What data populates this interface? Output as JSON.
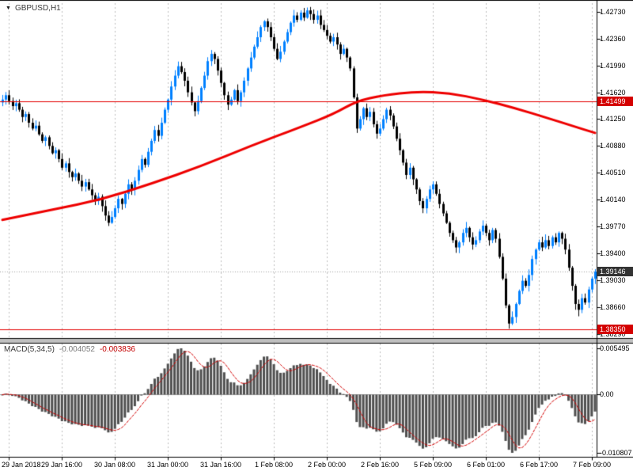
{
  "chart": {
    "symbol_label": "GBPUSD,H1",
    "dropdown_icon": "▼"
  },
  "colors": {
    "background": "#ffffff",
    "bull": "#0080ff",
    "bear": "#000000",
    "ma": "#ee0000",
    "hline": "#e40000",
    "grid": "#bdbdbd",
    "histogram": "#4f4f4f",
    "signal": "#d40000",
    "bid_line": "#9e9e9e",
    "splitter": "#bfbfbf",
    "tag_line_bg": "#d40000",
    "tag_bid_bg": "#333333",
    "tag_text": "#ffffff"
  },
  "lines": {
    "resistance": {
      "price": 1.41499,
      "label": "1.41499"
    },
    "bid": {
      "price": 1.39146,
      "label": "1.39146"
    },
    "support": {
      "price": 1.3835,
      "label": "1.38350"
    }
  },
  "price_axis": {
    "ticks": [
      "1.42730",
      "1.42360",
      "1.41990",
      "1.41620",
      "1.41250",
      "1.40880",
      "1.40510",
      "1.40140",
      "1.39770",
      "1.39400",
      "1.39030",
      "1.38660",
      "1.38290"
    ]
  },
  "time_axis": {
    "labels": [
      "29 Jan 2018",
      "29 Jan 16:00",
      "30 Jan 08:00",
      "31 Jan 00:00",
      "31 Jan 16:00",
      "1 Feb 08:00",
      "2 Feb 00:00",
      "2 Feb 16:00",
      "5 Feb 09:00",
      "6 Feb 01:00",
      "6 Feb 17:00",
      "7 Feb 09:00"
    ]
  },
  "macd": {
    "title": "MACD(5,34,5)",
    "value1": "-0.004052",
    "value2": "-0.003836",
    "axis": {
      "top": "0.005495",
      "zero": "0.00",
      "bottom": "-0.010807"
    }
  },
  "chart_data": {
    "type": "candlestick",
    "symbol": "GBPUSD",
    "timeframe": "H1",
    "title": "GBPUSD,H1",
    "price_range": [
      1.3823,
      1.4285
    ],
    "current_price": 1.39146,
    "horizontal_lines": {
      "resistance": 1.41499,
      "support": 1.3835,
      "bid": 1.39146
    },
    "y_axis_ticks": [
      "1.42730",
      "1.42360",
      "1.41990",
      "1.41620",
      "1.41250",
      "1.40880",
      "1.40510",
      "1.40140",
      "1.39770",
      "1.39400",
      "1.39030",
      "1.38660",
      "1.38290"
    ],
    "x_axis_labels": [
      "29 Jan 2018",
      "29 Jan 16:00",
      "30 Jan 08:00",
      "31 Jan 00:00",
      "31 Jan 16:00",
      "1 Feb 08:00",
      "2 Feb 00:00",
      "2 Feb 16:00",
      "5 Feb 09:00",
      "6 Feb 01:00",
      "6 Feb 17:00",
      "7 Feb 09:00"
    ],
    "gridline_start_index": 2,
    "gridline_step": 16,
    "closes": [
      1.4152,
      1.4158,
      1.415,
      1.4143,
      1.4147,
      1.4138,
      1.4128,
      1.4132,
      1.412,
      1.4112,
      1.4116,
      1.4104,
      1.4095,
      1.41,
      1.4088,
      1.4078,
      1.4082,
      1.407,
      1.4058,
      1.4064,
      1.4052,
      1.4045,
      1.405,
      1.404,
      1.4032,
      1.4038,
      1.4028,
      1.402,
      1.4012,
      1.4018,
      1.4005,
      1.3992,
      1.3982,
      1.399,
      1.4002,
      1.4015,
      1.4008,
      1.4022,
      1.4035,
      1.4028,
      1.404,
      1.4055,
      1.407,
      1.4062,
      1.408,
      1.4095,
      1.411,
      1.4102,
      1.412,
      1.4138,
      1.4152,
      1.417,
      1.4185,
      1.4198,
      1.419,
      1.4178,
      1.4162,
      1.4148,
      1.4136,
      1.415,
      1.4168,
      1.4185,
      1.4205,
      1.4215,
      1.4208,
      1.4192,
      1.4175,
      1.4158,
      1.4145,
      1.4152,
      1.4165,
      1.415,
      1.4162,
      1.4178,
      1.4195,
      1.421,
      1.4225,
      1.4238,
      1.4252,
      1.426,
      1.4252,
      1.4238,
      1.4222,
      1.4208,
      1.4218,
      1.4232,
      1.4245,
      1.4258,
      1.4268,
      1.4262,
      1.4272,
      1.4265,
      1.4275,
      1.427,
      1.4262,
      1.4268,
      1.4255,
      1.4248,
      1.424,
      1.4232,
      1.4238,
      1.4228,
      1.4215,
      1.4222,
      1.421,
      1.4195,
      1.4155,
      1.4112,
      1.4125,
      1.414,
      1.4128,
      1.4135,
      1.4118,
      1.4105,
      1.4112,
      1.4125,
      1.4138,
      1.413,
      1.4115,
      1.4098,
      1.4082,
      1.4065,
      1.4048,
      1.4058,
      1.4042,
      1.4028,
      1.4012,
      1.4002,
      1.4015,
      1.4028,
      1.4035,
      1.4022,
      1.4008,
      1.3995,
      1.3982,
      1.3968,
      1.3958,
      1.3948,
      1.3955,
      1.3968,
      1.3975,
      1.3962,
      1.3952,
      1.3958,
      1.397,
      1.3978,
      1.3968,
      1.3958,
      1.3972,
      1.396,
      1.3935,
      1.3905,
      1.3868,
      1.3843,
      1.3852,
      1.387,
      1.3888,
      1.3902,
      1.3895,
      1.391,
      1.3932,
      1.3945,
      1.3955,
      1.3948,
      1.3958,
      1.395,
      1.3962,
      1.3955,
      1.3968,
      1.396,
      1.3945,
      1.392,
      1.3895,
      1.387,
      1.3862,
      1.3878,
      1.3872,
      1.389,
      1.3905,
      1.39146
    ],
    "wick_overrides": {
      "92": {
        "high": 1.4279
      },
      "107": {
        "low": 1.4106
      },
      "153": {
        "low": 1.3836
      },
      "174": {
        "low": 1.3853
      }
    },
    "ma_anchors": [
      [
        0,
        1.3986
      ],
      [
        15,
        1.4
      ],
      [
        30,
        1.4014
      ],
      [
        45,
        1.4036
      ],
      [
        60,
        1.406
      ],
      [
        75,
        1.4088
      ],
      [
        90,
        1.4114
      ],
      [
        100,
        1.4132
      ],
      [
        107,
        1.415
      ],
      [
        115,
        1.4158
      ],
      [
        125,
        1.4163
      ],
      [
        135,
        1.4161
      ],
      [
        145,
        1.4152
      ],
      [
        155,
        1.414
      ],
      [
        165,
        1.4126
      ],
      [
        172,
        1.4116
      ],
      [
        179,
        1.4106
      ]
    ],
    "macd_params": {
      "fast_ema": 5,
      "slow_ema": 34,
      "signal_sma": 5
    },
    "macd_current": {
      "main": -0.004052,
      "signal": -0.003836
    },
    "macd_axis_range": [
      -0.010807,
      0.005495
    ]
  }
}
